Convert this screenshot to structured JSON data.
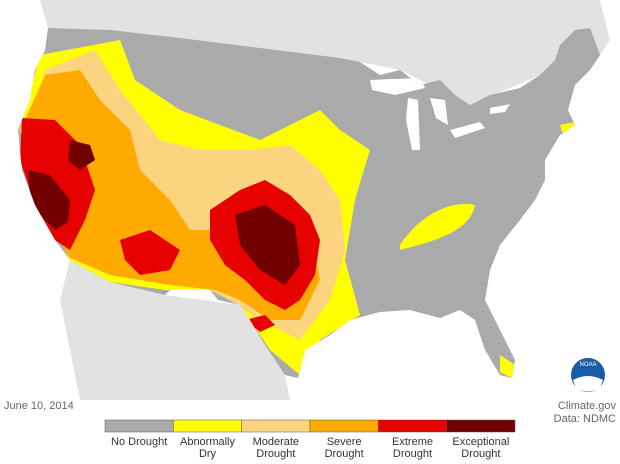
{
  "header": {
    "date": "June 10, 2014",
    "source": "Climate.gov",
    "credit": "Data: NDMC",
    "logo": "NOAA"
  },
  "legend": {
    "items": [
      {
        "label": "No Drought",
        "color": "#aaaaaa"
      },
      {
        "label": "Abnormally Dry",
        "color": "#ffff00"
      },
      {
        "label": "Moderate Drought",
        "color": "#fcd37f"
      },
      {
        "label": "Severe Drought",
        "color": "#ffaa00"
      },
      {
        "label": "Extreme Drought",
        "color": "#e60000"
      },
      {
        "label": "Exceptional Drought",
        "color": "#730000"
      }
    ]
  }
}
